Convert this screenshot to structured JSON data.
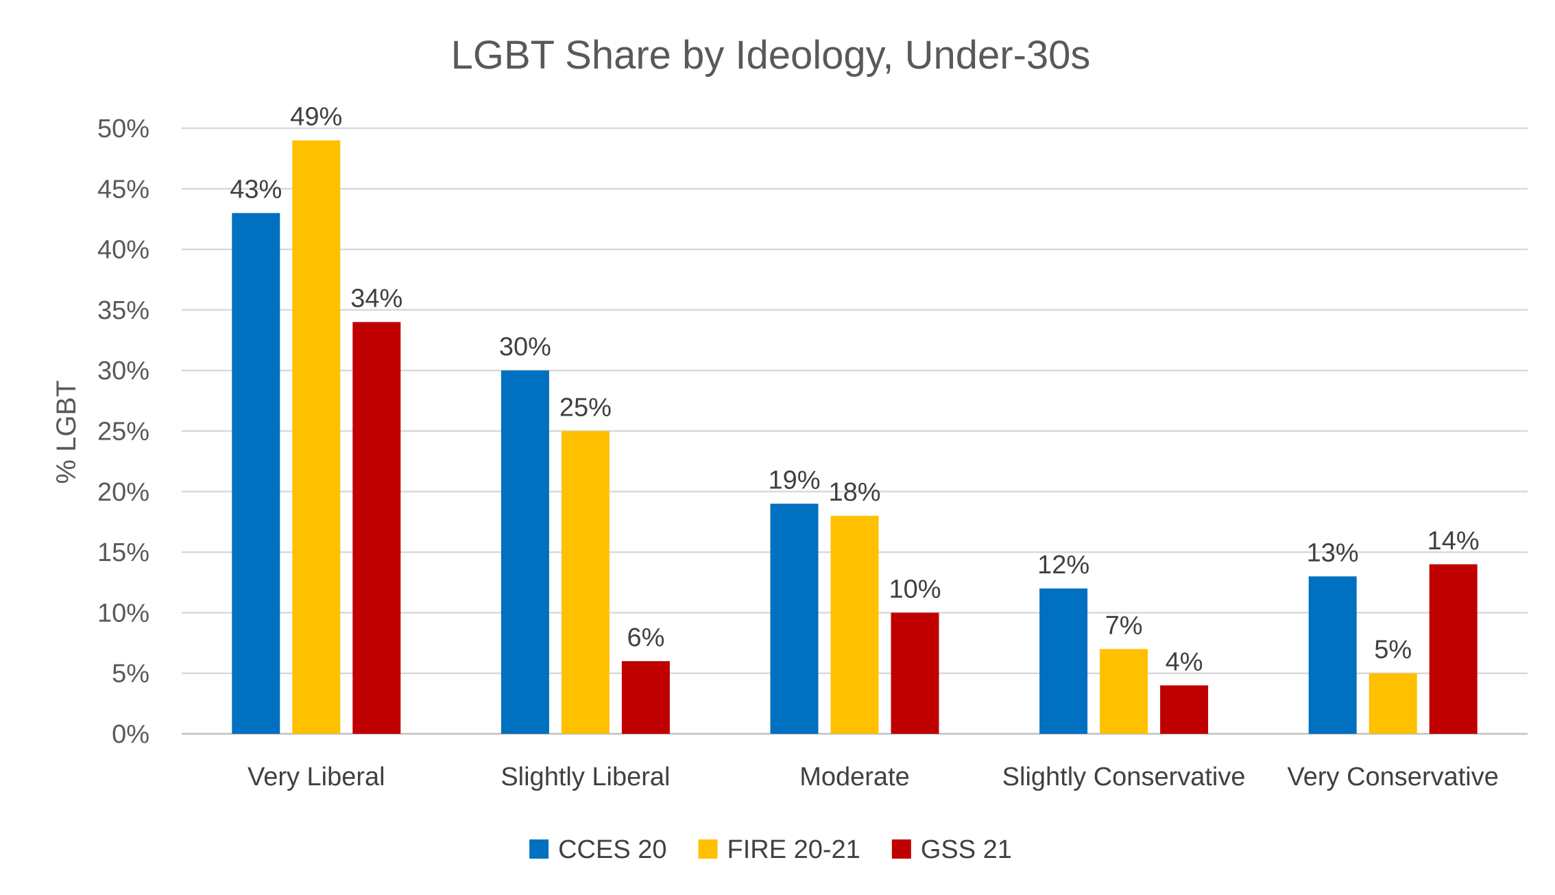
{
  "chart_data": {
    "type": "bar",
    "title": "LGBT Share by Ideology, Under-30s",
    "xlabel": "",
    "ylabel": "% LGBT",
    "categories": [
      "Very Liberal",
      "Slightly Liberal",
      "Moderate",
      "Slightly Conservative",
      "Very Conservative"
    ],
    "series": [
      {
        "name": "CCES 20",
        "color": "#0070c0",
        "values": [
          43,
          30,
          19,
          12,
          13
        ],
        "labels": [
          "43%",
          "30%",
          "19%",
          "12%",
          "13%"
        ]
      },
      {
        "name": "FIRE 20-21",
        "color": "#ffc000",
        "values": [
          49,
          25,
          18,
          7,
          5
        ],
        "labels": [
          "49%",
          "25%",
          "18%",
          "7%",
          "5%"
        ]
      },
      {
        "name": "GSS 21",
        "color": "#c00000",
        "values": [
          34,
          6,
          10,
          4,
          14
        ],
        "labels": [
          "34%",
          "6%",
          "10%",
          "4%",
          "14%"
        ]
      }
    ],
    "ylim": [
      0,
      50
    ],
    "yticks": [
      0,
      5,
      10,
      15,
      20,
      25,
      30,
      35,
      40,
      45,
      50
    ],
    "ytick_labels": [
      "0%",
      "5%",
      "10%",
      "15%",
      "20%",
      "25%",
      "30%",
      "35%",
      "40%",
      "45%",
      "50%"
    ],
    "grid": true,
    "legend_position": "bottom"
  }
}
